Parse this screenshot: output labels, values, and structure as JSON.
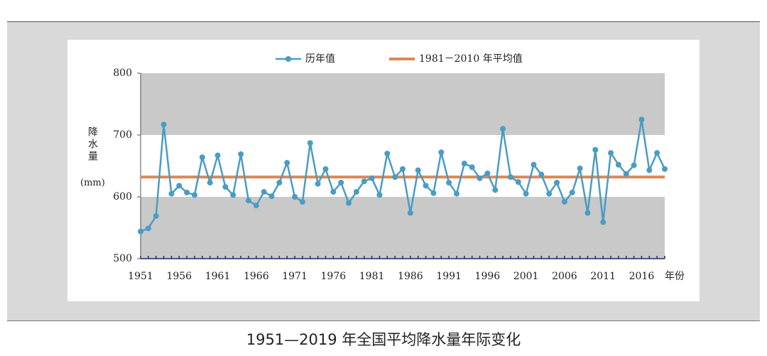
{
  "chart_data": {
    "type": "line",
    "caption": "1951—2019 年全国平均降水量年际变化",
    "y_label": "降水量",
    "y_unit": "(mm)",
    "x_label": "年份",
    "x": [
      1951,
      1952,
      1953,
      1954,
      1955,
      1956,
      1957,
      1958,
      1959,
      1960,
      1961,
      1962,
      1963,
      1964,
      1965,
      1966,
      1967,
      1968,
      1969,
      1970,
      1971,
      1972,
      1973,
      1974,
      1975,
      1976,
      1977,
      1978,
      1979,
      1980,
      1981,
      1982,
      1983,
      1984,
      1985,
      1986,
      1987,
      1988,
      1989,
      1990,
      1991,
      1992,
      1993,
      1994,
      1995,
      1996,
      1997,
      1998,
      1999,
      2000,
      2001,
      2002,
      2003,
      2004,
      2005,
      2006,
      2007,
      2008,
      2009,
      2010,
      2011,
      2012,
      2013,
      2014,
      2015,
      2016,
      2017,
      2018,
      2019
    ],
    "series": [
      {
        "name": "历年值",
        "color": "#4a9cc4",
        "values": [
          544,
          549,
          569,
          717,
          605,
          618,
          607,
          603,
          664,
          623,
          667,
          616,
          603,
          669,
          594,
          586,
          608,
          601,
          623,
          655,
          600,
          592,
          687,
          621,
          645,
          608,
          623,
          590,
          608,
          625,
          630,
          603,
          670,
          632,
          645,
          574,
          643,
          618,
          606,
          672,
          623,
          605,
          654,
          648,
          630,
          638,
          611,
          710,
          632,
          624,
          605,
          652,
          636,
          605,
          623,
          592,
          607,
          646,
          574,
          676,
          559,
          671,
          652,
          637,
          651,
          725,
          643,
          671,
          645
        ]
      }
    ],
    "reference_lines": [
      {
        "name": "1981－2010 年平均值",
        "color": "#d9895a",
        "value": 632
      }
    ],
    "bands": [
      {
        "from": 500,
        "to": 600,
        "color": "#c9c9c9"
      },
      {
        "from": 700,
        "to": 800,
        "color": "#c9c9c9"
      }
    ],
    "xlim": [
      1951,
      2019
    ],
    "xticks": [
      1951,
      1956,
      1961,
      1966,
      1971,
      1976,
      1981,
      1986,
      1991,
      1996,
      2001,
      2006,
      2011,
      2016
    ],
    "ylim": [
      500,
      800
    ],
    "yticks": [
      500,
      600,
      700,
      800
    ]
  }
}
